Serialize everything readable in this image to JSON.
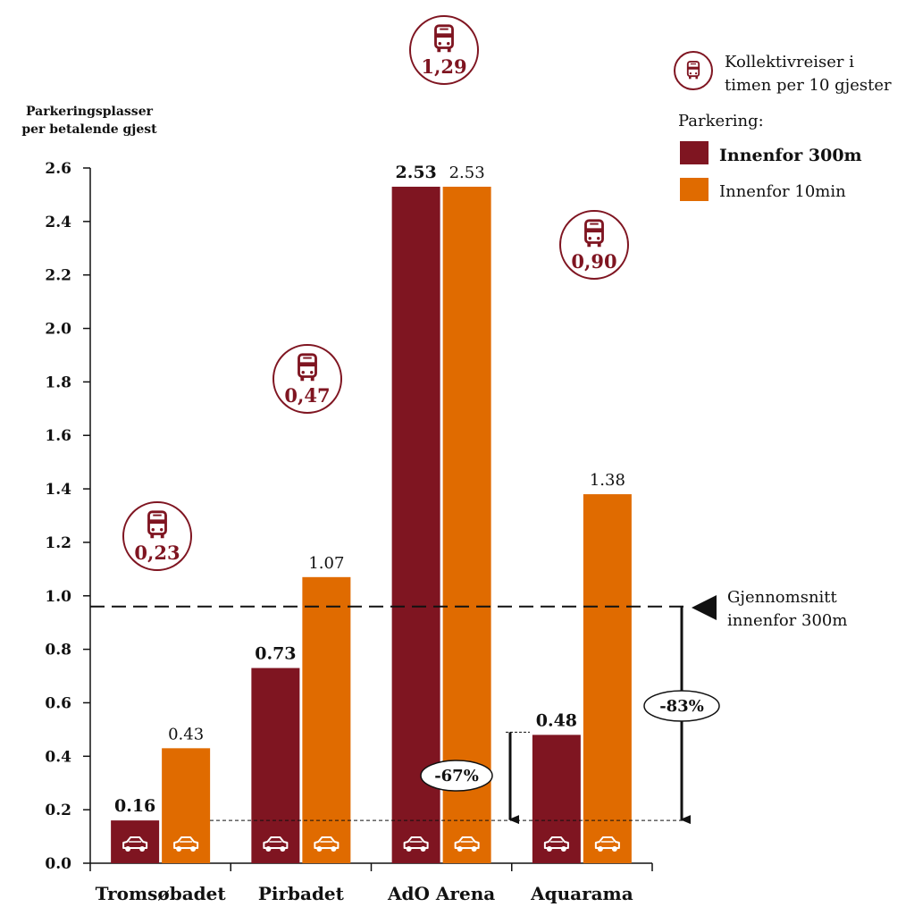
{
  "colors": {
    "within_300m": "#7f1521",
    "within_10min": "#e06b00",
    "transit": "#7f1521"
  },
  "chart_data": {
    "type": "bar",
    "ylabel": [
      "Parkeringsplasser",
      "per betalende gjest"
    ],
    "ylim": [
      0,
      2.6
    ],
    "yticks": [
      "0.0",
      "0.2",
      "0.4",
      "0.6",
      "0.8",
      "1.0",
      "1.2",
      "1.4",
      "1.6",
      "1.8",
      "2.0",
      "2.2",
      "2.4",
      "2.6"
    ],
    "categories": [
      "Tromsøbadet",
      "Pirbadet",
      "AdO Arena",
      "Aquarama"
    ],
    "series": [
      {
        "name": "Innenfor 300m",
        "values": [
          0.16,
          0.73,
          2.53,
          0.48
        ],
        "labels": [
          "0.16",
          "0.73",
          "2.53",
          "0.48"
        ]
      },
      {
        "name": "Innenfor 10min",
        "values": [
          0.43,
          1.07,
          2.53,
          1.38
        ],
        "labels": [
          "0.43",
          "1.07",
          "2.53",
          "1.38"
        ]
      }
    ],
    "transit_per_10_guests": [
      "0,23",
      "0,47",
      "1,29",
      "0,90"
    ],
    "average_line": {
      "value": 0.96,
      "label": [
        "Gjennomsnitt",
        "innenfor 300m"
      ]
    },
    "annotations": [
      {
        "label": "-67%",
        "from": 0.49,
        "to": 0.16
      },
      {
        "label": "-83%",
        "from": 0.96,
        "to": 0.16
      }
    ],
    "legend": {
      "transit_label": [
        "Kollektivreiser i",
        "timen per 10 gjester"
      ],
      "parking_heading": "Parkering:",
      "placement": "top-right"
    }
  }
}
